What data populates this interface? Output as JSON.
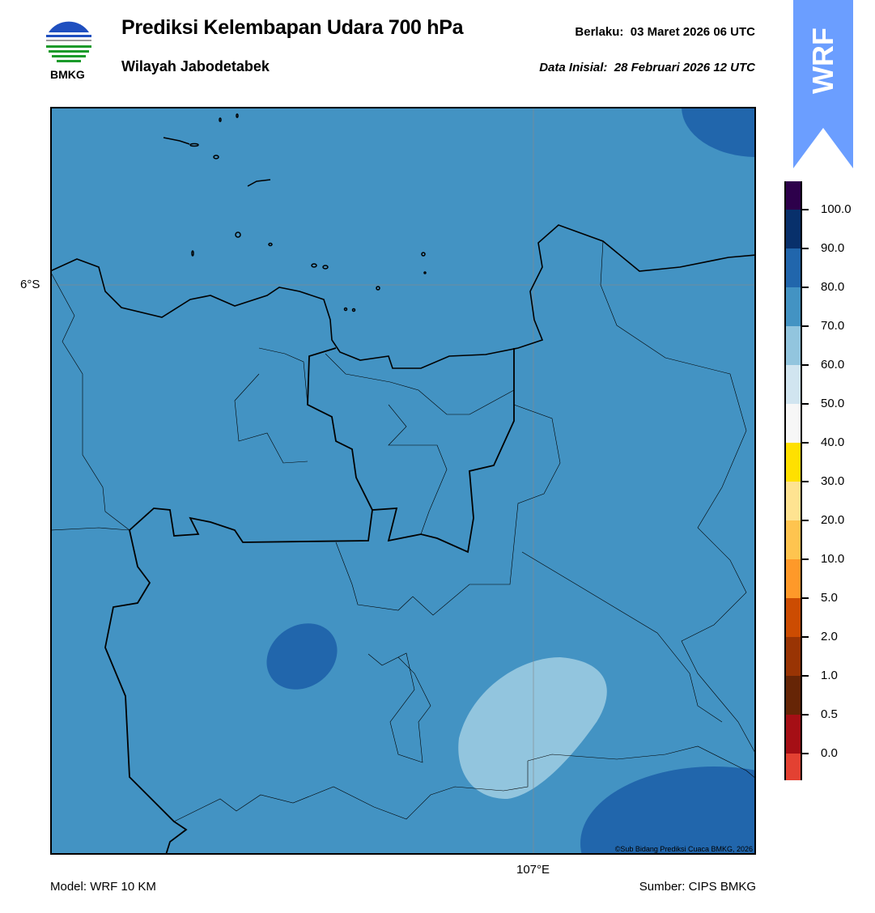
{
  "header": {
    "title": "Prediksi Kelembapan Udara 700 hPa",
    "subtitle": "Wilayah Jabodetabek",
    "valid": "Berlaku:  03 Maret 2026 06 UTC",
    "initial": "Data Inisial:  28 Februari 2026 12 UTC",
    "logo_text": "BMKG",
    "model_badge": "WRF"
  },
  "map": {
    "lat_label": "6°S",
    "lon_label": "107°E",
    "copyright": "©Sub Bidang Prediksi Cuaca BMKG, 2026",
    "background_color": "#4393c3"
  },
  "footer": {
    "model": "Model: WRF 10 KM",
    "source": "Sumber: CIPS BMKG"
  },
  "colorbar": {
    "ticks": [
      "100.0",
      "90.0",
      "80.0",
      "70.0",
      "60.0",
      "50.0",
      "40.0",
      "30.0",
      "20.0",
      "10.0",
      "5.0",
      "2.0",
      "1.0",
      "0.5",
      "0.0"
    ],
    "colors": [
      "#2d004b",
      "#08306b",
      "#2166ac",
      "#4393c3",
      "#92c5de",
      "#d1e5f0",
      "#f7f7f7",
      "#ffe000",
      "#fee391",
      "#fec44f",
      "#fe9929",
      "#cc4c02",
      "#993404",
      "#662506",
      "#a50f15",
      "#e34132"
    ]
  }
}
